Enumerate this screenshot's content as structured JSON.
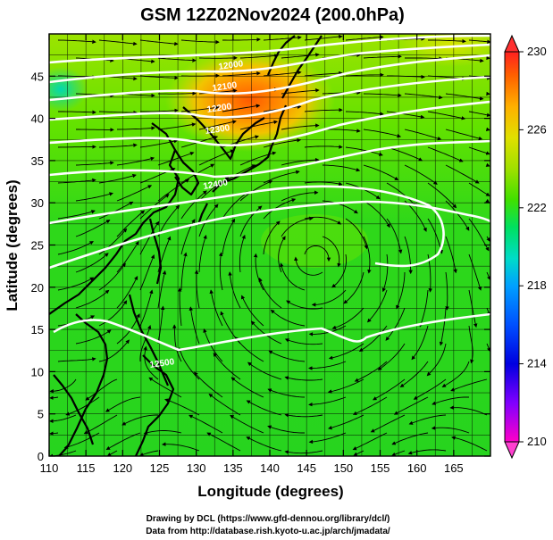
{
  "title": "GSM 12Z02Nov2024 (200.0hPa)",
  "x_axis": {
    "label": "Longitude (degrees)",
    "ticks": [
      "110",
      "115",
      "120",
      "125",
      "130",
      "135",
      "140",
      "145",
      "150",
      "155",
      "160",
      "165"
    ],
    "range": [
      110,
      170
    ]
  },
  "y_axis": {
    "label": "Latitude  (degrees)",
    "ticks": [
      "0",
      "5",
      "10",
      "15",
      "20",
      "25",
      "30",
      "35",
      "40",
      "45"
    ],
    "range": [
      0,
      50
    ]
  },
  "colorbar": {
    "labels": [
      "230",
      "226",
      "222",
      "218",
      "214",
      "210"
    ],
    "values": [
      230,
      226,
      222,
      218,
      214,
      210
    ],
    "min": 210,
    "max": 230,
    "colors": [
      "#ff00c8",
      "#8000ff",
      "#0000e0",
      "#0050ff",
      "#00a0ff",
      "#00dcc8",
      "#00e060",
      "#40e000",
      "#a0e000",
      "#e0e000",
      "#ffb000",
      "#ff6000",
      "#ff2020"
    ]
  },
  "contour_labels": [
    "12000",
    "12100",
    "12200",
    "12300",
    "12400",
    "12500"
  ],
  "credits": {
    "line1": "Drawing by DCL (https://www.gfd-dennou.org/library/dcl/)",
    "line2": "Data from http://database.rish.kyoto-u.ac.jp/arch/jmadata/"
  }
}
